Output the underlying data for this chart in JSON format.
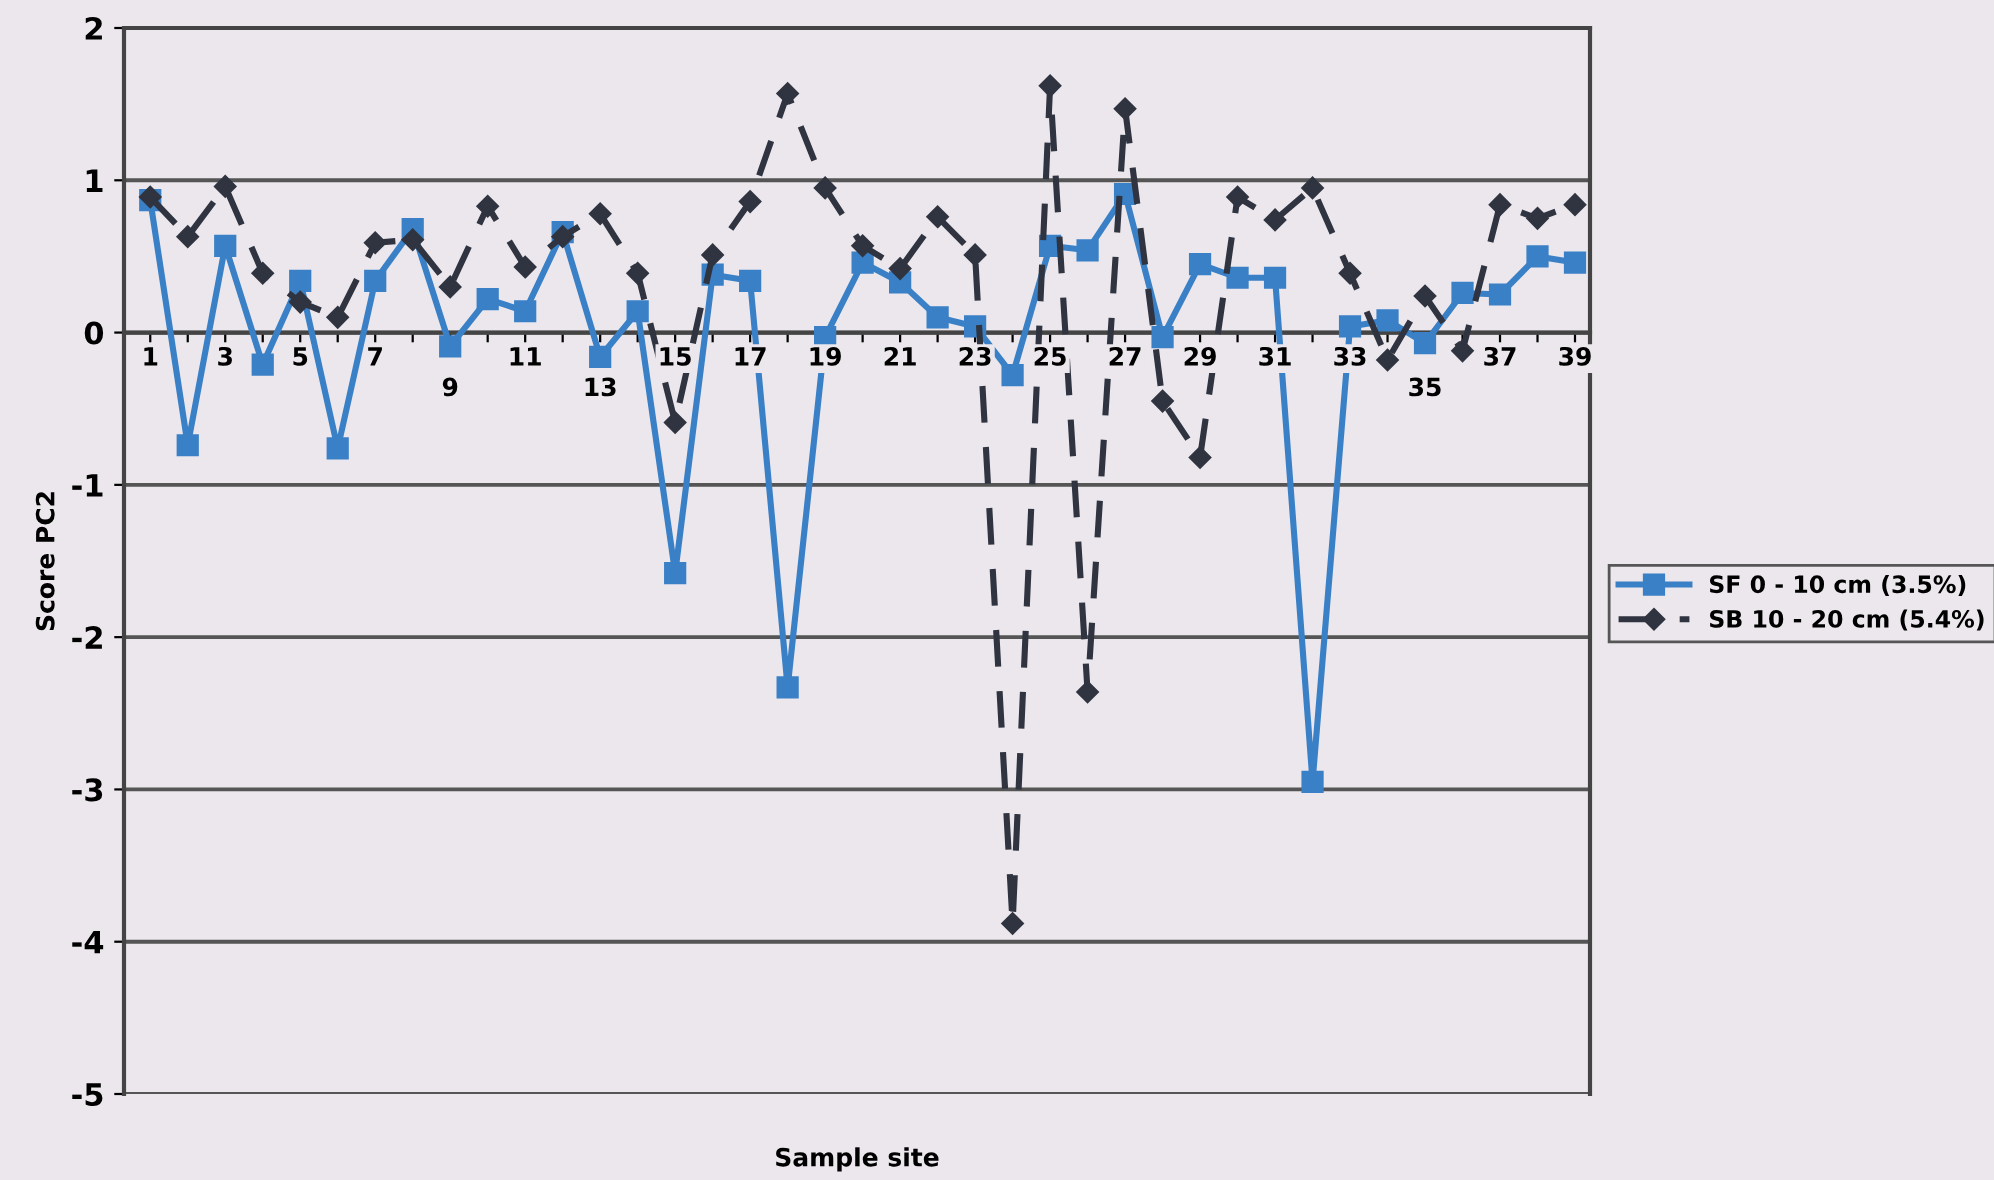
{
  "chart_data": {
    "type": "line",
    "xlabel": "Sample site",
    "ylabel": "Score PC2",
    "categories": [
      "1",
      null,
      "3",
      null,
      "5",
      null,
      "7",
      null,
      "9",
      null,
      "11",
      null,
      "13",
      null,
      "15",
      null,
      "17",
      null,
      "19",
      null,
      "21",
      null,
      "23",
      null,
      "25",
      null,
      "27",
      null,
      "29",
      null,
      "31",
      null,
      "33",
      null,
      "35",
      null,
      "37",
      null,
      "39"
    ],
    "series": [
      {
        "name": "SF 0 - 10 cm (3.5%)",
        "color": "#3a80c6",
        "marker": "square",
        "line_style": "solid",
        "values": [
          0.87,
          -0.74,
          0.57,
          -0.21,
          0.34,
          -0.76,
          0.34,
          0.68,
          -0.09,
          0.22,
          0.14,
          0.66,
          -0.16,
          0.14,
          -1.58,
          0.38,
          0.34,
          -2.33,
          -0.03,
          0.46,
          0.33,
          0.1,
          0.04,
          -0.28,
          0.57,
          0.54,
          0.91,
          -0.03,
          0.45,
          0.36,
          0.36,
          -2.95,
          0.04,
          0.08,
          -0.07,
          0.26,
          0.25,
          0.5,
          0.46
        ]
      },
      {
        "name": "SB 10 - 20 cm (5.4%)",
        "color": "#2f3440",
        "marker": "diamond",
        "line_style": "dashed",
        "values": [
          0.89,
          0.63,
          0.96,
          0.39,
          0.2,
          0.1,
          0.59,
          0.61,
          0.3,
          0.83,
          0.43,
          0.63,
          0.78,
          0.39,
          -0.59,
          0.51,
          0.86,
          1.57,
          0.95,
          0.57,
          0.42,
          0.76,
          0.51,
          -3.88,
          1.62,
          -2.36,
          1.47,
          -0.45,
          -0.82,
          0.89,
          0.74,
          0.95,
          0.39,
          -0.18,
          0.24,
          -0.12,
          0.84,
          0.75,
          0.84
        ]
      }
    ],
    "ylim": [
      -5,
      2
    ],
    "yticks": [
      -5,
      -4,
      -3,
      -2,
      -1,
      0,
      1,
      2
    ],
    "grid": "y",
    "legend": "right"
  }
}
